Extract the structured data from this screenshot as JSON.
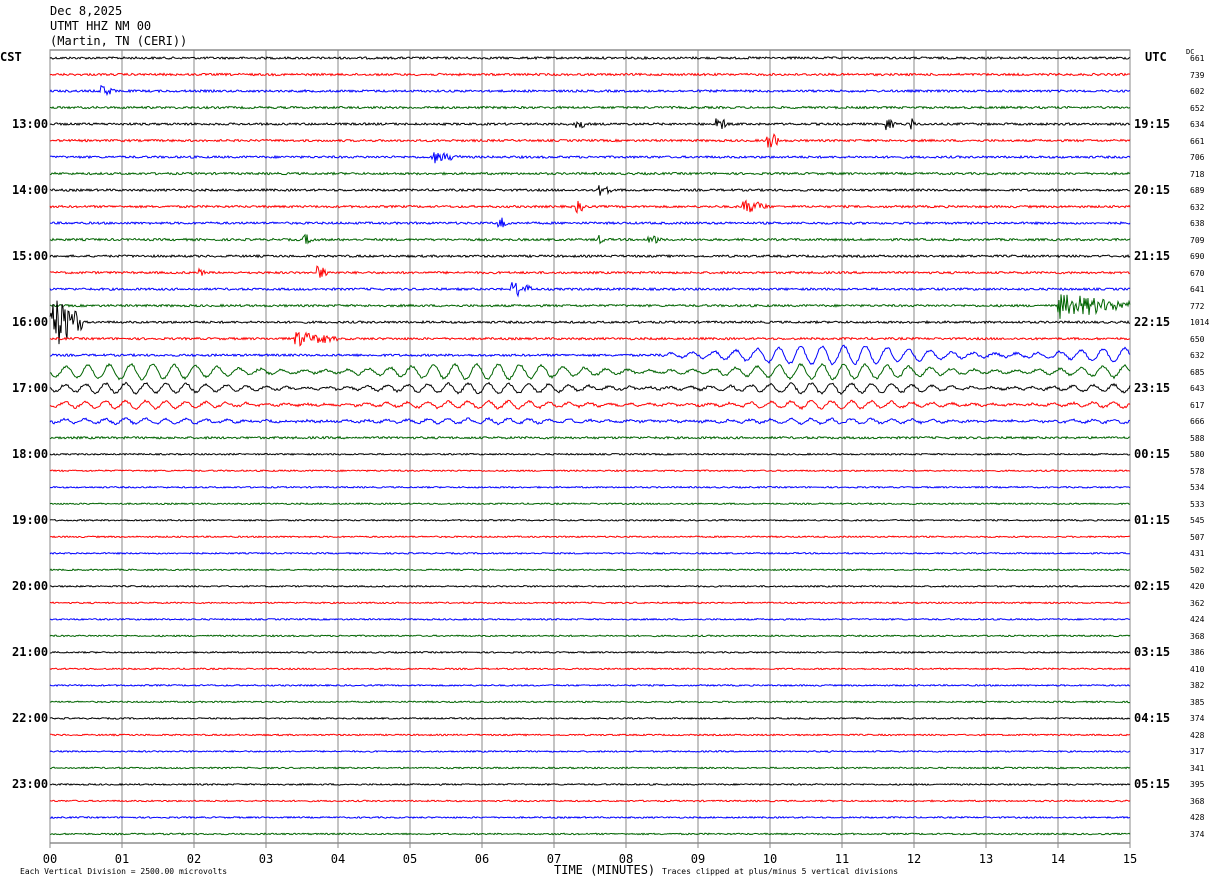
{
  "header": {
    "date": "Dec 8,2025",
    "station": "UTMT HHZ NM 00",
    "location": "(Martin, TN (CERI))"
  },
  "left_tz": "CST",
  "right_tz": "UTC",
  "dc_label": "DC",
  "footer": {
    "scale": "Each Vertical Division = 2500.00 microvolts",
    "xlabel": "TIME (MINUTES)",
    "clip": "Traces clipped at plus/minus 5 vertical divisions"
  },
  "chart_data": {
    "type": "line",
    "title": "UTMT HHZ NM 00 helicorder",
    "xlabel": "TIME (MINUTES)",
    "xlim": [
      0,
      15
    ],
    "x_ticks": [
      "00",
      "01",
      "02",
      "03",
      "04",
      "05",
      "06",
      "07",
      "08",
      "09",
      "10",
      "11",
      "12",
      "13",
      "14",
      "15"
    ],
    "trace_colors": [
      "#000000",
      "#ff0000",
      "#0000ff",
      "#006400"
    ],
    "left_hour_labels": [
      {
        "trace": 4,
        "text": "13:00"
      },
      {
        "trace": 8,
        "text": "14:00"
      },
      {
        "trace": 12,
        "text": "15:00"
      },
      {
        "trace": 16,
        "text": "16:00"
      },
      {
        "trace": 20,
        "text": "17:00"
      },
      {
        "trace": 24,
        "text": "18:00"
      },
      {
        "trace": 28,
        "text": "19:00"
      },
      {
        "trace": 32,
        "text": "20:00"
      },
      {
        "trace": 36,
        "text": "21:00"
      },
      {
        "trace": 40,
        "text": "22:00"
      },
      {
        "trace": 44,
        "text": "23:00"
      }
    ],
    "right_hour_labels": [
      {
        "trace": 4,
        "text": "19:15"
      },
      {
        "trace": 8,
        "text": "20:15"
      },
      {
        "trace": 12,
        "text": "21:15"
      },
      {
        "trace": 16,
        "text": "22:15"
      },
      {
        "trace": 20,
        "text": "23:15"
      },
      {
        "trace": 24,
        "text": "00:15"
      },
      {
        "trace": 28,
        "text": "01:15"
      },
      {
        "trace": 32,
        "text": "02:15"
      },
      {
        "trace": 36,
        "text": "03:15"
      },
      {
        "trace": 40,
        "text": "04:15"
      },
      {
        "trace": 44,
        "text": "05:15"
      }
    ],
    "dc_values": [
      "661",
      "739",
      "602",
      "652",
      "634",
      "661",
      "706",
      "718",
      "689",
      "632",
      "638",
      "709",
      "690",
      "670",
      "641",
      "772",
      "1014",
      "650",
      "632",
      "685",
      "643",
      "617",
      "666",
      "588",
      "580",
      "578",
      "534",
      "533",
      "545",
      "507",
      "431",
      "502",
      "420",
      "362",
      "424",
      "368",
      "386",
      "410",
      "382",
      "385",
      "374",
      "428",
      "317",
      "341",
      "395",
      "368",
      "428",
      "374"
    ],
    "events": [
      {
        "trace": 2,
        "minute": 0.7,
        "dur": 0.2,
        "amp": 0.4
      },
      {
        "trace": 4,
        "minute": 7.3,
        "dur": 0.15,
        "amp": 0.35
      },
      {
        "trace": 4,
        "minute": 9.25,
        "dur": 0.15,
        "amp": 0.4
      },
      {
        "trace": 4,
        "minute": 11.6,
        "dur": 0.15,
        "amp": 0.35
      },
      {
        "trace": 4,
        "minute": 11.95,
        "dur": 0.1,
        "amp": 0.35
      },
      {
        "trace": 5,
        "minute": 9.95,
        "dur": 0.2,
        "amp": 0.5
      },
      {
        "trace": 6,
        "minute": 5.3,
        "dur": 0.4,
        "amp": 0.3
      },
      {
        "trace": 8,
        "minute": 7.6,
        "dur": 0.2,
        "amp": 0.4
      },
      {
        "trace": 9,
        "minute": 7.3,
        "dur": 0.15,
        "amp": 0.3
      },
      {
        "trace": 9,
        "minute": 9.6,
        "dur": 0.4,
        "amp": 0.35
      },
      {
        "trace": 10,
        "minute": 6.2,
        "dur": 0.2,
        "amp": 0.35
      },
      {
        "trace": 11,
        "minute": 3.5,
        "dur": 0.2,
        "amp": 0.3
      },
      {
        "trace": 11,
        "minute": 7.6,
        "dur": 0.1,
        "amp": 0.3
      },
      {
        "trace": 11,
        "minute": 8.3,
        "dur": 0.2,
        "amp": 0.3
      },
      {
        "trace": 13,
        "minute": 3.7,
        "dur": 0.2,
        "amp": 0.35
      },
      {
        "trace": 13,
        "minute": 2.05,
        "dur": 0.1,
        "amp": 0.3
      },
      {
        "trace": 14,
        "minute": 6.4,
        "dur": 0.3,
        "amp": 0.45
      },
      {
        "trace": 15,
        "minute": 14.0,
        "dur": 1.0,
        "amp": 0.6
      },
      {
        "trace": 16,
        "minute": 0.0,
        "dur": 0.45,
        "amp": 1.4
      },
      {
        "trace": 17,
        "minute": 3.4,
        "dur": 0.6,
        "amp": 0.35
      }
    ],
    "surface_waves": [
      {
        "trace": 18,
        "start": 8.5,
        "end": 15,
        "amp": 0.55,
        "period_min": 0.3
      },
      {
        "trace": 19,
        "start": 0,
        "end": 15,
        "amp": 0.45,
        "period_min": 0.3
      },
      {
        "trace": 20,
        "start": 0,
        "end": 15,
        "amp": 0.3,
        "period_min": 0.28
      },
      {
        "trace": 21,
        "start": 0,
        "end": 15,
        "amp": 0.22,
        "period_min": 0.28
      },
      {
        "trace": 22,
        "start": 0,
        "end": 15,
        "amp": 0.15,
        "period_min": 0.28
      }
    ]
  }
}
